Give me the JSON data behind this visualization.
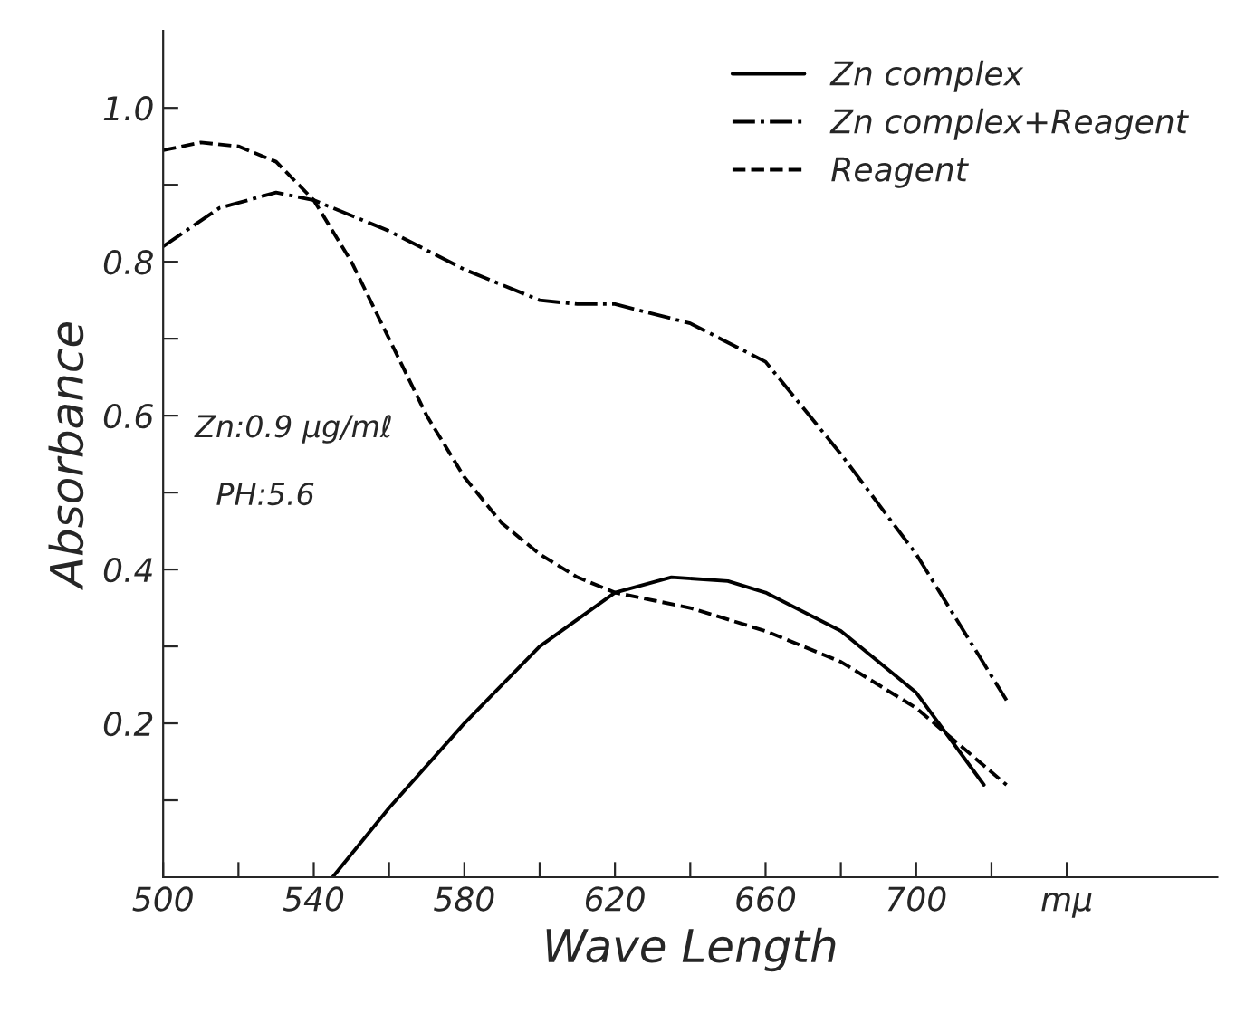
{
  "chart_data": {
    "type": "line",
    "xlabel": "Wave Length",
    "ylabel": "Absorbance",
    "xlim": [
      500,
      780
    ],
    "ylim": [
      0,
      1.1
    ],
    "xticks": [
      500,
      {
        "value": 520,
        "label": null
      },
      540,
      {
        "value": 560,
        "label": null
      },
      580,
      {
        "value": 600,
        "label": null
      },
      620,
      {
        "value": 640,
        "label": null
      },
      660,
      {
        "value": 680,
        "label": null
      },
      700,
      {
        "value": 720,
        "label": null
      },
      {
        "value": 740,
        "label": "mμ"
      }
    ],
    "yticks": [
      {
        "value": 0.1,
        "label": null
      },
      0.2,
      {
        "value": 0.3,
        "label": null
      },
      0.4,
      {
        "value": 0.5,
        "label": null
      },
      0.6,
      {
        "value": 0.7,
        "label": null
      },
      0.8,
      {
        "value": 0.9,
        "label": null
      },
      {
        "value": 1.0,
        "label": "1.0"
      }
    ],
    "grid": false,
    "legend": "top right",
    "marker": "none",
    "annotations": [
      "Zn:0.9 μg/mℓ",
      "PH:5.6"
    ],
    "series": [
      {
        "name": "Zn complex",
        "color": "#000000",
        "line_style": "solid",
        "x": [
          545,
          560,
          580,
          600,
          620,
          635,
          650,
          660,
          680,
          700,
          718
        ],
        "values": [
          0,
          0.09,
          0.2,
          0.3,
          0.37,
          0.39,
          0.385,
          0.37,
          0.32,
          0.24,
          0.12
        ]
      },
      {
        "name": "Zn complex+Reagent",
        "color": "#000000",
        "line_style": "dashdot",
        "x": [
          500,
          515,
          530,
          540,
          560,
          580,
          600,
          610,
          620,
          640,
          660,
          680,
          700,
          724
        ],
        "values": [
          0.82,
          0.87,
          0.89,
          0.88,
          0.84,
          0.79,
          0.75,
          0.745,
          0.745,
          0.72,
          0.67,
          0.55,
          0.42,
          0.23
        ]
      },
      {
        "name": "Reagent",
        "color": "#000000",
        "line_style": "dashed",
        "x": [
          500,
          510,
          520,
          530,
          540,
          550,
          560,
          570,
          580,
          590,
          600,
          610,
          620,
          640,
          660,
          680,
          700,
          724
        ],
        "values": [
          0.945,
          0.955,
          0.95,
          0.93,
          0.88,
          0.8,
          0.7,
          0.6,
          0.52,
          0.46,
          0.42,
          0.39,
          0.37,
          0.35,
          0.32,
          0.28,
          0.22,
          0.12
        ]
      }
    ]
  }
}
